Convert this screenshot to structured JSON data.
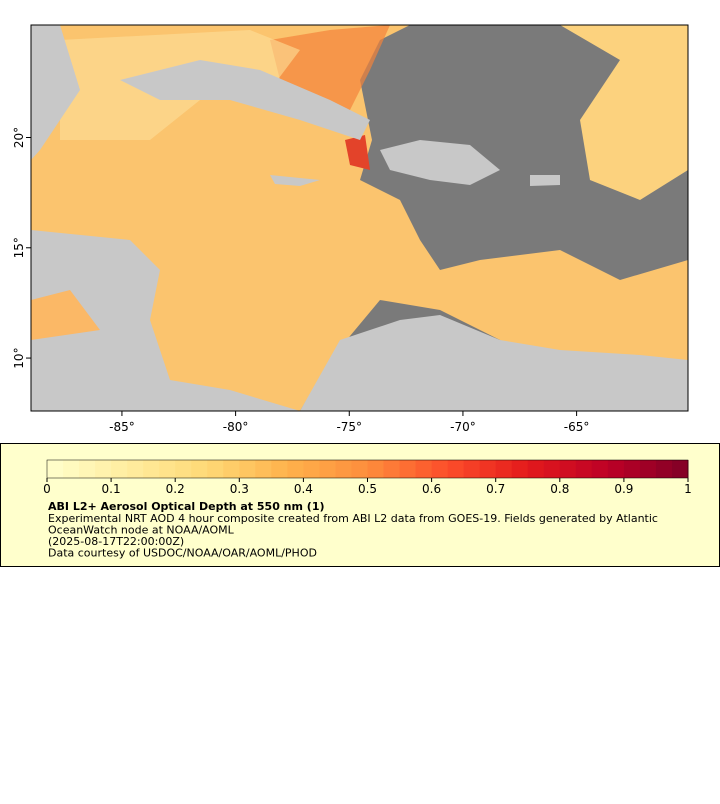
{
  "map": {
    "xlim": [
      -89,
      -60.1
    ],
    "ylim": [
      7.6,
      25.1
    ],
    "xticks": [
      {
        "value": -85,
        "label": "-85°"
      },
      {
        "value": -80,
        "label": "-80°"
      },
      {
        "value": -75,
        "label": "-75°"
      },
      {
        "value": -70,
        "label": "-70°"
      },
      {
        "value": -65,
        "label": "-65°"
      }
    ],
    "yticks": [
      {
        "value": 10,
        "label": "10°"
      },
      {
        "value": 15,
        "label": "15°"
      },
      {
        "value": 20,
        "label": "20°"
      }
    ]
  },
  "colorbar": {
    "lim": [
      0,
      1
    ],
    "ticks": [
      0,
      0.1,
      0.2,
      0.3,
      0.4,
      0.5,
      0.6,
      0.7,
      0.8,
      0.9,
      1
    ]
  },
  "legend": {
    "title": "ABI L2+ Aerosol Optical Depth at 550 nm (1)",
    "lines": [
      "Experimental NRT AOD 4 hour composite created from ABI L2 data from GOES-19. Fields generated by Atlantic",
      "OceanWatch node at NOAA/AOML",
      "(2025-08-17T22:00:00Z)",
      "Data courtesy of USDOC/NOAA/OAR/AOML/PHOD"
    ]
  }
}
